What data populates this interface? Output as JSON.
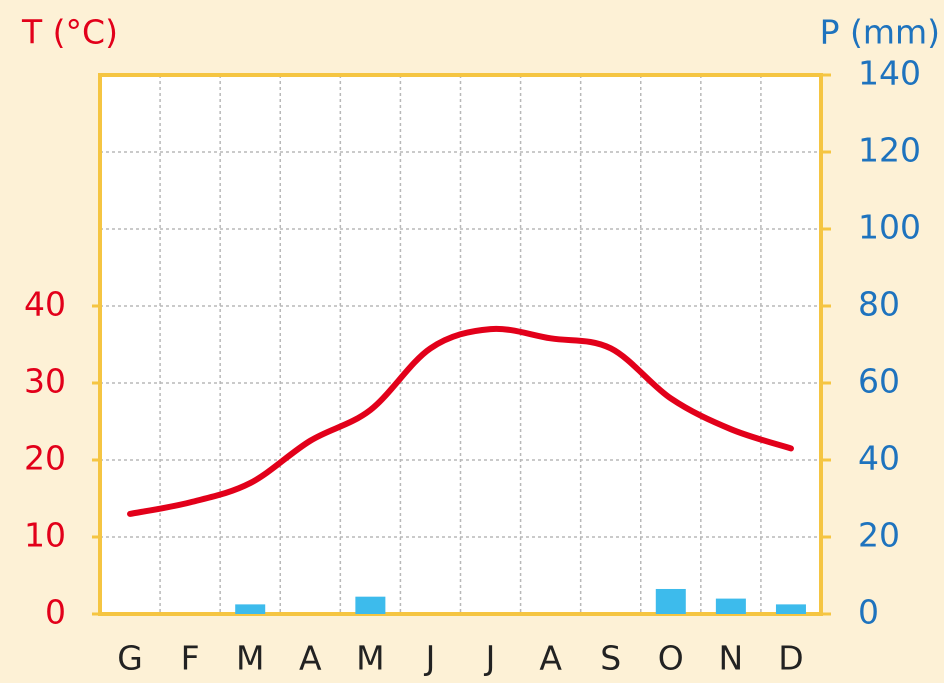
{
  "chart_data": {
    "type": "combo",
    "ylabel": "T (°C)",
    "y2label": "P (mm)",
    "categories": [
      "G",
      "F",
      "M",
      "A",
      "M",
      "J",
      "J",
      "A",
      "S",
      "O",
      "N",
      "D"
    ],
    "ylim": [
      0,
      70
    ],
    "yticks": [
      0,
      10,
      20,
      30,
      40
    ],
    "y2lim": [
      0,
      140
    ],
    "y2ticks": [
      0,
      20,
      40,
      60,
      80,
      100,
      120,
      140
    ],
    "grid": true,
    "series": [
      {
        "type": "line",
        "color": "#e2001a",
        "values": [
          13,
          14.5,
          17,
          22.5,
          26.5,
          34.5,
          37,
          35.8,
          34.5,
          28,
          24,
          21.5
        ]
      },
      {
        "type": "bar",
        "axis": "y2",
        "color": "#3dbbec",
        "values": [
          0,
          0,
          2.5,
          0,
          4.5,
          0,
          0,
          0,
          0,
          6.5,
          4,
          2.5
        ]
      }
    ]
  }
}
